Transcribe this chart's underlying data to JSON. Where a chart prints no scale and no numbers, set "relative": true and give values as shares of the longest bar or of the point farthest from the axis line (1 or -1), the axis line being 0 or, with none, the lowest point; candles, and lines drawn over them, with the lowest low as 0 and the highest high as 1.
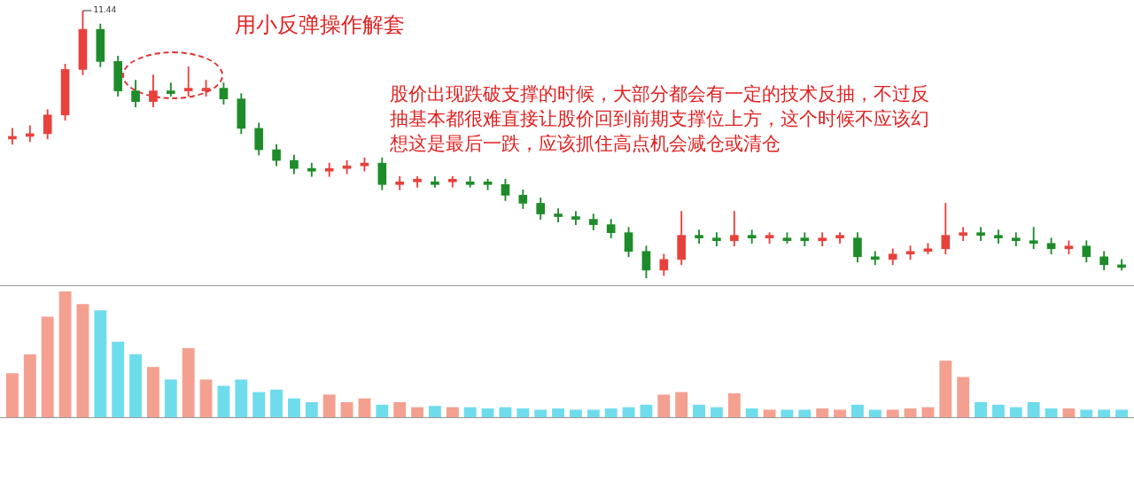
{
  "chart_data": [
    {
      "type": "candlestick",
      "title": "用小反弹操作解套",
      "relative": true,
      "annotations": [
        "股价出现跌破支撑的时候，大部分都会有一定的技术反抽，不过反抽基本都很难直接让股价回到前期支撑位上方，这个时候不应该幻想这是最后一跌，应该抓住高点机会减仓或清仓",
        "11.44"
      ],
      "categories": [
        null,
        null,
        null,
        null,
        null,
        null,
        null,
        null,
        null,
        null,
        null,
        null,
        null,
        null,
        null,
        null,
        null,
        null,
        null,
        null,
        null,
        null,
        null,
        null,
        null,
        null,
        null,
        null,
        null,
        null,
        null,
        null,
        null,
        null,
        null,
        null,
        null,
        null,
        null,
        null,
        null,
        null,
        null,
        null,
        null,
        null,
        null,
        null,
        null,
        null,
        null,
        null,
        null,
        null,
        null,
        null,
        null,
        null,
        null,
        null,
        null,
        null,
        null,
        null
      ],
      "ohlc": [
        [
          0.52,
          0.56,
          0.5,
          0.53
        ],
        [
          0.53,
          0.57,
          0.51,
          0.54
        ],
        [
          0.54,
          0.63,
          0.52,
          0.61
        ],
        [
          0.61,
          0.8,
          0.59,
          0.78
        ],
        [
          0.78,
          1,
          0.76,
          0.93
        ],
        [
          0.93,
          0.95,
          0.79,
          0.81
        ],
        [
          0.81,
          0.83,
          0.68,
          0.7
        ],
        [
          0.7,
          0.74,
          0.64,
          0.66
        ],
        [
          0.66,
          0.76,
          0.64,
          0.7
        ],
        [
          0.7,
          0.73,
          0.68,
          0.69
        ],
        [
          0.7,
          0.79,
          0.68,
          0.71
        ],
        [
          0.7,
          0.74,
          0.68,
          0.71
        ],
        [
          0.71,
          0.73,
          0.65,
          0.67
        ],
        [
          0.67,
          0.69,
          0.54,
          0.56
        ],
        [
          0.56,
          0.58,
          0.46,
          0.48
        ],
        [
          0.48,
          0.5,
          0.42,
          0.44
        ],
        [
          0.44,
          0.46,
          0.39,
          0.41
        ],
        [
          0.41,
          0.43,
          0.38,
          0.4
        ],
        [
          0.4,
          0.43,
          0.38,
          0.41
        ],
        [
          0.41,
          0.44,
          0.39,
          0.42
        ],
        [
          0.42,
          0.45,
          0.4,
          0.43
        ],
        [
          0.43,
          0.45,
          0.33,
          0.35
        ],
        [
          0.35,
          0.38,
          0.33,
          0.36
        ],
        [
          0.36,
          0.38,
          0.34,
          0.37
        ],
        [
          0.36,
          0.38,
          0.34,
          0.35
        ],
        [
          0.36,
          0.38,
          0.34,
          0.37
        ],
        [
          0.36,
          0.38,
          0.34,
          0.35
        ],
        [
          0.36,
          0.37,
          0.33,
          0.35
        ],
        [
          0.35,
          0.37,
          0.29,
          0.31
        ],
        [
          0.31,
          0.33,
          0.26,
          0.28
        ],
        [
          0.28,
          0.3,
          0.22,
          0.24
        ],
        [
          0.24,
          0.26,
          0.21,
          0.23
        ],
        [
          0.23,
          0.25,
          0.2,
          0.22
        ],
        [
          0.22,
          0.24,
          0.18,
          0.2
        ],
        [
          0.2,
          0.22,
          0.15,
          0.17
        ],
        [
          0.17,
          0.19,
          0.08,
          0.1
        ],
        [
          0.1,
          0.12,
          0,
          0.03
        ],
        [
          0.03,
          0.09,
          0.01,
          0.07
        ],
        [
          0.07,
          0.25,
          0.05,
          0.16
        ],
        [
          0.16,
          0.18,
          0.13,
          0.15
        ],
        [
          0.15,
          0.17,
          0.12,
          0.14
        ],
        [
          0.14,
          0.25,
          0.12,
          0.16
        ],
        [
          0.16,
          0.18,
          0.13,
          0.15
        ],
        [
          0.15,
          0.17,
          0.13,
          0.16
        ],
        [
          0.15,
          0.17,
          0.13,
          0.14
        ],
        [
          0.15,
          0.17,
          0.12,
          0.14
        ],
        [
          0.14,
          0.17,
          0.12,
          0.15
        ],
        [
          0.15,
          0.17,
          0.13,
          0.16
        ],
        [
          0.15,
          0.17,
          0.06,
          0.08
        ],
        [
          0.08,
          0.1,
          0.05,
          0.07
        ],
        [
          0.07,
          0.11,
          0.05,
          0.09
        ],
        [
          0.09,
          0.12,
          0.07,
          0.1
        ],
        [
          0.1,
          0.13,
          0.09,
          0.11
        ],
        [
          0.11,
          0.28,
          0.09,
          0.16
        ],
        [
          0.16,
          0.19,
          0.14,
          0.17
        ],
        [
          0.17,
          0.19,
          0.14,
          0.16
        ],
        [
          0.16,
          0.18,
          0.13,
          0.15
        ],
        [
          0.15,
          0.17,
          0.12,
          0.14
        ],
        [
          0.14,
          0.19,
          0.11,
          0.13
        ],
        [
          0.13,
          0.15,
          0.09,
          0.11
        ],
        [
          0.11,
          0.14,
          0.09,
          0.12
        ],
        [
          0.12,
          0.14,
          0.06,
          0.08
        ],
        [
          0.08,
          0.1,
          0.03,
          0.05
        ],
        [
          0.05,
          0.07,
          0.03,
          0.04
        ]
      ],
      "colors": [
        "#e8413c",
        "#e8413c",
        "#e8413c",
        "#e8413c",
        "#e8413c",
        "#1e8c2a",
        "#1e8c2a",
        "#1e8c2a",
        "#e8413c",
        "#1e8c2a",
        "#e8413c",
        "#e8413c",
        "#1e8c2a",
        "#1e8c2a",
        "#1e8c2a",
        "#1e8c2a",
        "#1e8c2a",
        "#1e8c2a",
        "#e8413c",
        "#e8413c",
        "#e8413c",
        "#1e8c2a",
        "#e8413c",
        "#e8413c",
        "#1e8c2a",
        "#e8413c",
        "#1e8c2a",
        "#1e8c2a",
        "#1e8c2a",
        "#1e8c2a",
        "#1e8c2a",
        "#1e8c2a",
        "#1e8c2a",
        "#1e8c2a",
        "#1e8c2a",
        "#1e8c2a",
        "#1e8c2a",
        "#e8413c",
        "#e8413c",
        "#1e8c2a",
        "#1e8c2a",
        "#e8413c",
        "#1e8c2a",
        "#e8413c",
        "#1e8c2a",
        "#1e8c2a",
        "#e8413c",
        "#e8413c",
        "#1e8c2a",
        "#1e8c2a",
        "#e8413c",
        "#e8413c",
        "#e8413c",
        "#e8413c",
        "#e8413c",
        "#1e8c2a",
        "#1e8c2a",
        "#1e8c2a",
        "#1e8c2a",
        "#1e8c2a",
        "#e8413c",
        "#1e8c2a",
        "#1e8c2a",
        "#1e8c2a"
      ]
    },
    {
      "type": "bar",
      "relative": true,
      "categories": [
        null,
        null,
        null,
        null,
        null,
        null,
        null,
        null,
        null,
        null,
        null,
        null,
        null,
        null,
        null,
        null,
        null,
        null,
        null,
        null,
        null,
        null,
        null,
        null,
        null,
        null,
        null,
        null,
        null,
        null,
        null,
        null,
        null,
        null,
        null,
        null,
        null,
        null,
        null,
        null,
        null,
        null,
        null,
        null,
        null,
        null,
        null,
        null,
        null,
        null,
        null,
        null,
        null,
        null,
        null,
        null,
        null,
        null,
        null,
        null,
        null,
        null,
        null,
        null
      ],
      "values": [
        0.35,
        0.5,
        0.8,
        1,
        0.9,
        0.85,
        0.6,
        0.5,
        0.4,
        0.3,
        0.55,
        0.3,
        0.25,
        0.3,
        0.2,
        0.22,
        0.15,
        0.12,
        0.18,
        0.12,
        0.15,
        0.1,
        0.12,
        0.08,
        0.09,
        0.08,
        0.08,
        0.07,
        0.08,
        0.07,
        0.06,
        0.07,
        0.06,
        0.06,
        0.07,
        0.08,
        0.1,
        0.18,
        0.2,
        0.1,
        0.08,
        0.19,
        0.07,
        0.06,
        0.06,
        0.06,
        0.07,
        0.06,
        0.1,
        0.06,
        0.06,
        0.07,
        0.08,
        0.45,
        0.32,
        0.12,
        0.1,
        0.08,
        0.12,
        0.07,
        0.07,
        0.06,
        0.06,
        0.06
      ],
      "colors": [
        "#f4a090",
        "#f4a090",
        "#f4a090",
        "#f4a090",
        "#f4a090",
        "#6fdcec",
        "#6fdcec",
        "#6fdcec",
        "#f4a090",
        "#6fdcec",
        "#f4a090",
        "#f4a090",
        "#6fdcec",
        "#6fdcec",
        "#6fdcec",
        "#6fdcec",
        "#6fdcec",
        "#6fdcec",
        "#f4a090",
        "#f4a090",
        "#f4a090",
        "#6fdcec",
        "#f4a090",
        "#f4a090",
        "#6fdcec",
        "#f4a090",
        "#6fdcec",
        "#6fdcec",
        "#6fdcec",
        "#6fdcec",
        "#6fdcec",
        "#6fdcec",
        "#6fdcec",
        "#6fdcec",
        "#6fdcec",
        "#6fdcec",
        "#6fdcec",
        "#f4a090",
        "#f4a090",
        "#6fdcec",
        "#6fdcec",
        "#f4a090",
        "#6fdcec",
        "#f4a090",
        "#6fdcec",
        "#6fdcec",
        "#f4a090",
        "#f4a090",
        "#6fdcec",
        "#6fdcec",
        "#f4a090",
        "#f4a090",
        "#f4a090",
        "#f4a090",
        "#f4a090",
        "#6fdcec",
        "#6fdcec",
        "#6fdcec",
        "#6fdcec",
        "#6fdcec",
        "#f4a090",
        "#6fdcec",
        "#6fdcec",
        "#6fdcec"
      ]
    }
  ]
}
